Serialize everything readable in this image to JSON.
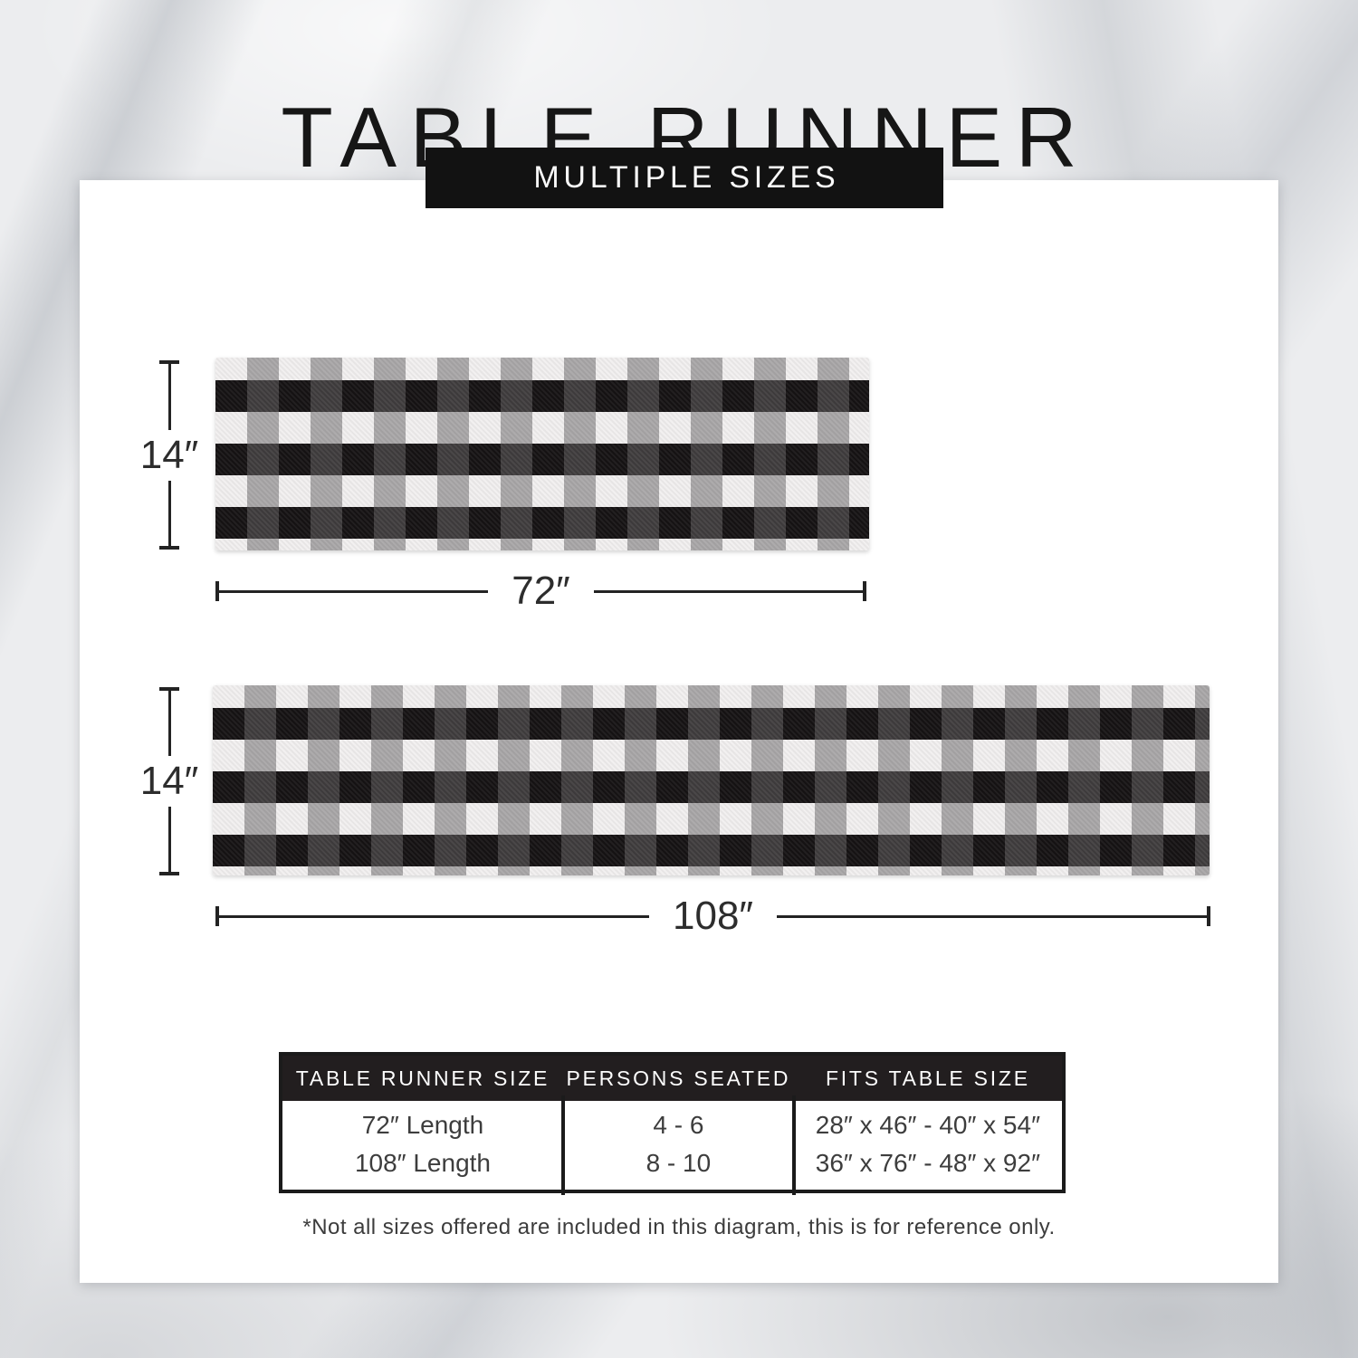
{
  "title": "TABLE RUNNER",
  "banner": "MULTIPLE SIZES",
  "colors": {
    "banner_bg": "#121212",
    "card_bg": "#ffffff",
    "marble_base": "#ecedef",
    "plaid_white": "#f1efef",
    "plaid_gray": "#a9a7a8",
    "plaid_dark_gray": "#403d3e",
    "plaid_black": "#161314",
    "table_header_bg": "#221e1f",
    "dimension_line": "#232323"
  },
  "runners": [
    {
      "name": "72-inch runner",
      "height_label": "14″",
      "width_label": "72″"
    },
    {
      "name": "108-inch runner",
      "height_label": "14″",
      "width_label": "108″"
    }
  ],
  "size_table": {
    "headers": [
      "TABLE RUNNER SIZE",
      "PERSONS SEATED",
      "FITS TABLE SIZE"
    ],
    "rows": [
      [
        "72″ Length",
        "4 - 6",
        "28″ x 46″ - 40″ x 54″"
      ],
      [
        "108″ Length",
        "8 - 10",
        "36″ x 76″ - 48″ x 92″"
      ]
    ]
  },
  "footnote": "*Not all sizes offered are included in this diagram, this is for reference only."
}
